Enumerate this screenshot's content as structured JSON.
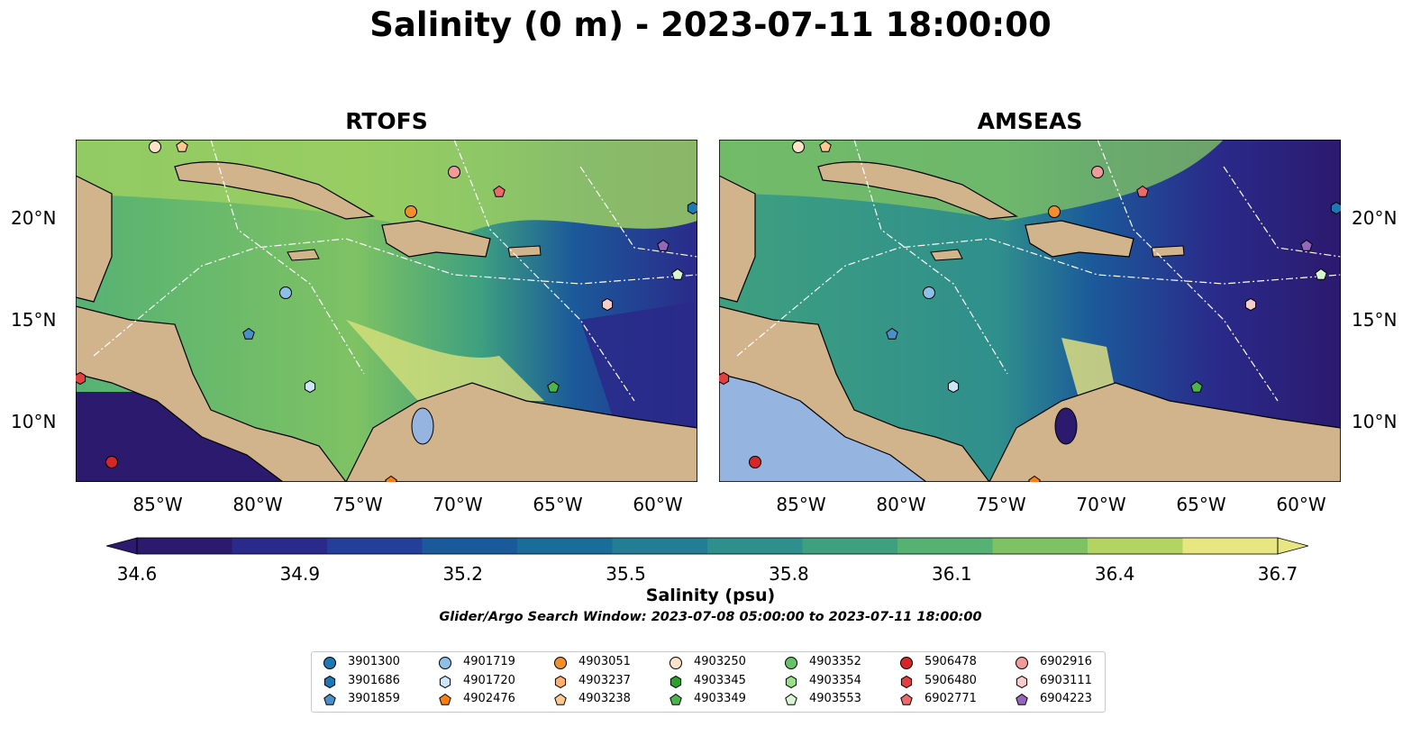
{
  "title": "Salinity (0 m) - 2023-07-11 18:00:00",
  "panels": [
    {
      "title": "RTOFS"
    },
    {
      "title": "AMSEAS"
    }
  ],
  "axes": {
    "lat_labels": [
      "20°N",
      "15°N",
      "10°N"
    ],
    "lon_labels": [
      "85°W",
      "80°W",
      "75°W",
      "70°W",
      "65°W",
      "60°W"
    ]
  },
  "colorbar": {
    "label": "Salinity (psu)",
    "min": 34.6,
    "max": 36.7,
    "ticks": [
      "34.6",
      "34.9",
      "35.2",
      "35.5",
      "35.8",
      "36.1",
      "36.4",
      "36.7"
    ],
    "colors": [
      "#2b1a6e",
      "#2a2a8a",
      "#243f9a",
      "#1b5a9a",
      "#1a6c99",
      "#237e95",
      "#2f8f8c",
      "#3ea07f",
      "#56b273",
      "#7ec263",
      "#b3d460",
      "#e8e680"
    ]
  },
  "search_window": "Glider/Argo Search Window: 2023-07-08 05:00:00 to 2023-07-11 18:00:00",
  "legend": [
    {
      "id": "3901300",
      "color": "#1f77b4",
      "marker": "circle"
    },
    {
      "id": "3901686",
      "color": "#1f77b4",
      "marker": "hexagon"
    },
    {
      "id": "3901859",
      "color": "#4a90c8",
      "marker": "pentagon"
    },
    {
      "id": "4901719",
      "color": "#8cc0e6",
      "marker": "circle"
    },
    {
      "id": "4901720",
      "color": "#cde6f7",
      "marker": "hexagon"
    },
    {
      "id": "4902476",
      "color": "#ff7f0e",
      "marker": "pentagon"
    },
    {
      "id": "4903051",
      "color": "#f28e2b",
      "marker": "circle"
    },
    {
      "id": "4903237",
      "color": "#ffb070",
      "marker": "hexagon"
    },
    {
      "id": "4903238",
      "color": "#ffc890",
      "marker": "pentagon"
    },
    {
      "id": "4903250",
      "color": "#fde3c8",
      "marker": "circle"
    },
    {
      "id": "4903345",
      "color": "#2ca02c",
      "marker": "hexagon"
    },
    {
      "id": "4903349",
      "color": "#4cb44c",
      "marker": "pentagon"
    },
    {
      "id": "4903352",
      "color": "#66c266",
      "marker": "circle"
    },
    {
      "id": "4903354",
      "color": "#98df8a",
      "marker": "hexagon"
    },
    {
      "id": "4903553",
      "color": "#d6f5d0",
      "marker": "pentagon"
    },
    {
      "id": "5906478",
      "color": "#d62728",
      "marker": "circle"
    },
    {
      "id": "5906480",
      "color": "#e04040",
      "marker": "hexagon"
    },
    {
      "id": "6902771",
      "color": "#ee6a6a",
      "marker": "pentagon"
    },
    {
      "id": "6902916",
      "color": "#f09a9a",
      "marker": "circle"
    },
    {
      "id": "6903111",
      "color": "#f9cccc",
      "marker": "hexagon"
    },
    {
      "id": "6904223",
      "color": "#9467bd",
      "marker": "pentagon"
    }
  ]
}
